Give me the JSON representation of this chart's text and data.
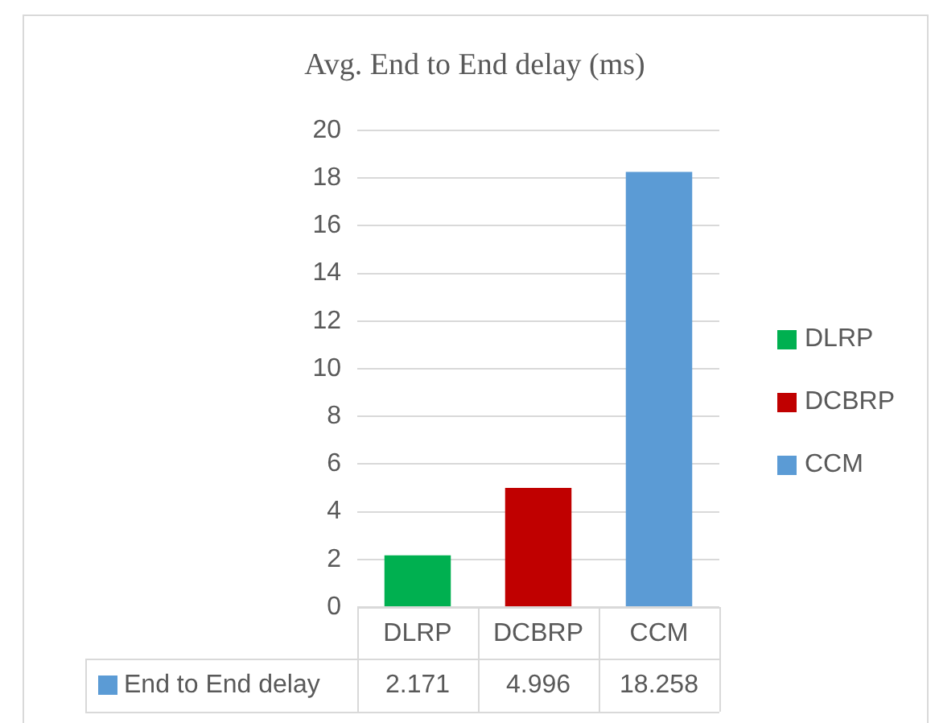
{
  "chart_data": {
    "type": "bar",
    "title": "Avg. End to End delay (ms)",
    "categories": [
      "DLRP",
      "DCBRP",
      "CCM"
    ],
    "series": [
      {
        "name": "End to End delay",
        "color": "#5b9bd5",
        "colors": [
          "#00b050",
          "#c00000",
          "#5b9bd5"
        ],
        "values": [
          2.171,
          4.996,
          18.258
        ]
      }
    ],
    "ylim": [
      0,
      20
    ],
    "yticks": [
      0,
      2,
      4,
      6,
      8,
      10,
      12,
      14,
      16,
      18,
      20
    ],
    "grid": "y",
    "legend": "bottom left",
    "data_labels": true
  }
}
